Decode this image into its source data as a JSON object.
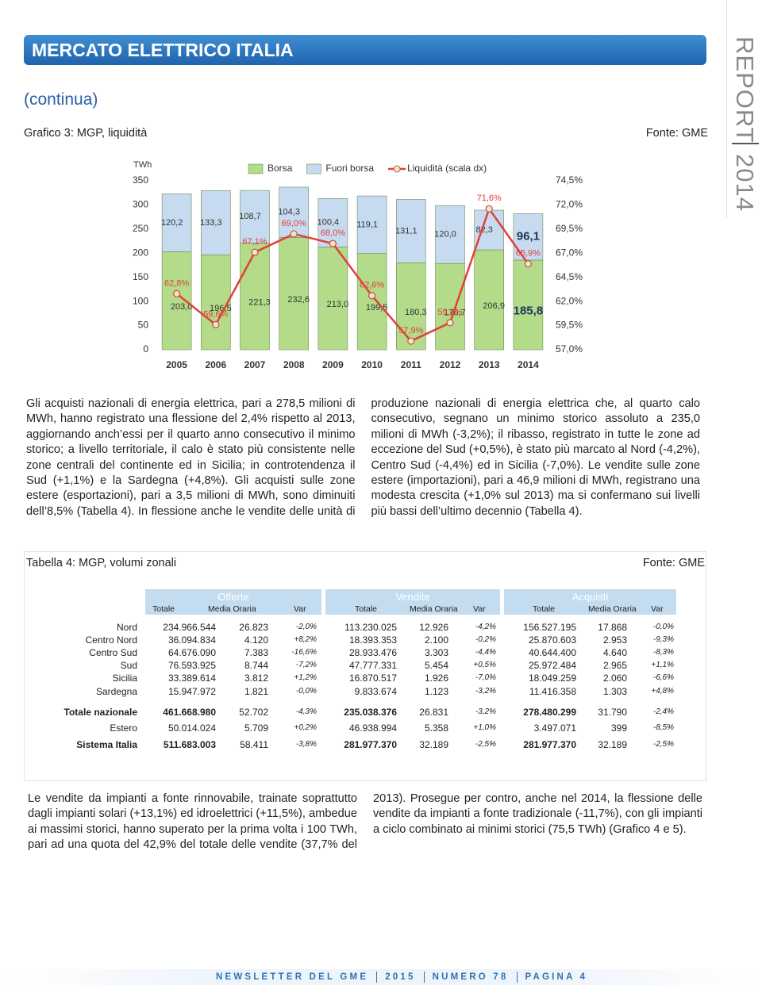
{
  "header": {
    "title": "MERCATO ELETTRICO ITALIA",
    "subtitle": "(continua)"
  },
  "side": {
    "report": "REPORT",
    "year": "2014"
  },
  "chart_caption": {
    "title": "Grafico 3: MGP, liquidità",
    "source": "Fonte: GME"
  },
  "chart_data": {
    "type": "bar",
    "stacked": true,
    "y_unit": "TWh",
    "categories": [
      "2005",
      "2006",
      "2007",
      "2008",
      "2009",
      "2010",
      "2011",
      "2012",
      "2013",
      "2014"
    ],
    "series": [
      {
        "name": "Borsa",
        "color": "#b3db8a",
        "values": [
          203.0,
          196.5,
          221.3,
          232.6,
          213.0,
          199.5,
          180.3,
          178.7,
          206.9,
          185.8
        ],
        "value_labels": [
          "203,0",
          "196,5",
          "221,3",
          "232,6",
          "213,0",
          "199,5",
          "180,3",
          "178,7",
          "206,9",
          "185,8"
        ]
      },
      {
        "name": "Fuori borsa",
        "color": "#c7dbf0",
        "values": [
          120.2,
          133.3,
          108.7,
          104.3,
          100.4,
          119.1,
          131.1,
          120.0,
          82.3,
          96.1
        ],
        "value_labels": [
          "120,2",
          "133,3",
          "108,7",
          "104,3",
          "100,4",
          "119,1",
          "131,1",
          "120,0",
          "82,3",
          "96,1"
        ]
      },
      {
        "name": "Liquidità (scala dx)",
        "type": "line",
        "axis": "y2",
        "color": "#e0413a",
        "values": [
          62.8,
          59.6,
          67.1,
          69.0,
          68.0,
          62.6,
          57.9,
          59.8,
          71.6,
          65.9
        ],
        "value_labels": [
          "62,8%",
          "59,6%",
          "67,1%",
          "69,0%",
          "68,0%",
          "62,6%",
          "57,9%",
          "59,8%",
          "71,6%",
          "65,9%"
        ]
      }
    ],
    "ylim": [
      0,
      350
    ],
    "yticks": [
      0,
      50,
      100,
      150,
      200,
      250,
      300,
      350
    ],
    "y2lim": [
      57,
      74.5
    ],
    "y2ticks": [
      {
        "value": 57,
        "label": "57,0%"
      },
      {
        "value": 59.5,
        "label": "59,5%"
      },
      {
        "value": 62,
        "label": "62,0%"
      },
      {
        "value": 64.5,
        "label": "64,5%"
      },
      {
        "value": 67,
        "label": "67,0%"
      },
      {
        "value": 69.5,
        "label": "69,5%"
      },
      {
        "value": 72,
        "label": "72,0%"
      },
      {
        "value": 74.5,
        "label": "74,5%"
      }
    ],
    "grid": false
  },
  "text_1": "Gli acquisti nazionali di energia elettrica, pari a 278,5 milioni di MWh, hanno registrato una flessione del 2,4% rispetto al 2013, aggiornando anch’essi per il quarto anno consecutivo il minimo storico; a livello territoriale, il calo è stato più consistente nelle zone centrali del continente ed in Sicilia; in controtendenza il Sud (+1,1%) e la Sardegna (+4,8%). Gli acquisti sulle zone estere (esportazioni), pari a 3,5 milioni di MWh, sono diminuiti dell’8,5% (Tabella 4). In flessione anche le vendite delle unità di produzione nazionali di energia elettrica che, al quarto calo consecutivo, segnano un minimo storico assoluto a 235,0 milioni di MWh (-3,2%); il ribasso, registrato in tutte le zone ad eccezione del Sud (+0,5%), è stato più marcato al Nord (-4,2%), Centro Sud (-4,4%) ed in Sicilia (-7,0%). Le vendite sulle zone estere (importazioni), pari a 46,9 milioni di MWh, registrano una modesta crescita (+1,0% sul 2013) ma si confermano sui livelli più bassi dell’ultimo decennio (Tabella 4).",
  "table": {
    "title": "Tabella 4: MGP, volumi zonali",
    "source": "Fonte: GME",
    "groups": [
      "Offerte",
      "Vendite",
      "Acquisti"
    ],
    "columns": [
      "Totale",
      "Media Oraria",
      "Var",
      "Totale",
      "Media Oraria",
      "Var",
      "Totale",
      "Media Oraria",
      "Var"
    ],
    "rows": [
      [
        "Nord",
        "234.966.544",
        "26.823",
        "-2,0%",
        "113.230.025",
        "12.926",
        "-4,2%",
        "156.527.195",
        "17.868",
        "-0,0%"
      ],
      [
        "Centro Nord",
        "36.094.834",
        "4.120",
        "+8,2%",
        "18.393.353",
        "2.100",
        "-0,2%",
        "25.870.603",
        "2.953",
        "-9,3%"
      ],
      [
        "Centro Sud",
        "64.676.090",
        "7.383",
        "-16,6%",
        "28.933.476",
        "3.303",
        "-4,4%",
        "40.644.400",
        "4.640",
        "-8,3%"
      ],
      [
        "Sud",
        "76.593.925",
        "8.744",
        "-7,2%",
        "47.777.331",
        "5.454",
        "+0,5%",
        "25.972.484",
        "2.965",
        "+1,1%"
      ],
      [
        "Sicilia",
        "33.389.614",
        "3.812",
        "+1,2%",
        "16.870.517",
        "1.926",
        "-7,0%",
        "18.049.259",
        "2.060",
        "-6,6%"
      ],
      [
        "Sardegna",
        "15.947.972",
        "1.821",
        "-0,0%",
        "9.833.674",
        "1.123",
        "-3,2%",
        "11.416.358",
        "1.303",
        "+4,8%"
      ],
      [
        "Totale nazionale",
        "461.668.980",
        "52.702",
        "-4,3%",
        "235.038.376",
        "26.831",
        "-3,2%",
        "278.480.299",
        "31.790",
        "-2,4%"
      ],
      [
        "Estero",
        "50.014.024",
        "5.709",
        "+0,2%",
        "46.938.994",
        "5.358",
        "+1,0%",
        "3.497.071",
        "399",
        "-8,5%"
      ],
      [
        "Sistema Italia",
        "511.683.003",
        "58.411",
        "-3,8%",
        "281.977.370",
        "32.189",
        "-2,5%",
        "281.977.370",
        "32.189",
        "-2,5%"
      ]
    ]
  },
  "text_2": "Le vendite da impianti a fonte rinnovabile, trainate soprattutto dagli impianti solari (+13,1%) ed idroelettrici (+11,5%), ambedue ai massimi storici, hanno superato per la prima volta i 100 TWh, pari ad una quota del 42,9% del totale delle vendite (37,7% del 2013). Prosegue per contro, anche nel 2014, la flessione delle vendite da impianti a fonte tradizionale (-11,7%), con gli impianti a ciclo combinato ai minimi storici (75,5 TWh) (Grafico 4 e 5).",
  "footer": [
    "NEWSLETTER DEL GME",
    "2015",
    "NUMERO 78",
    "PAGINA 4"
  ]
}
